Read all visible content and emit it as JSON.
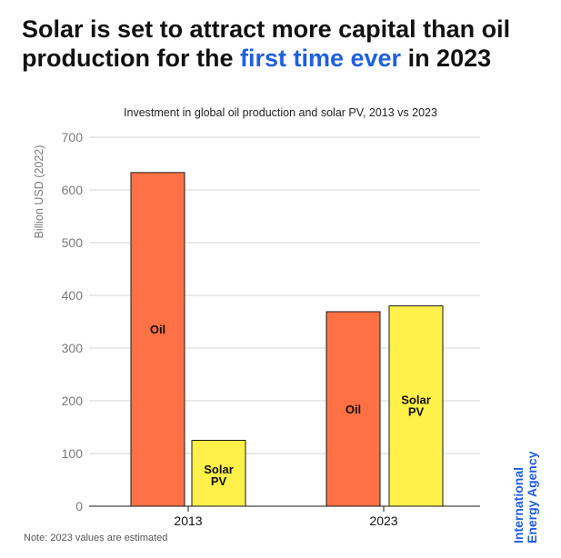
{
  "headline": {
    "part1": "Solar is set to attract more capital than oil production for the ",
    "highlight": "first time ever",
    "part2": " in 2023"
  },
  "note": "Note: 2023 values are estimated",
  "source": {
    "line1": "International",
    "line2": "Energy Agency"
  },
  "colors": {
    "oil": "#ff7144",
    "solar": "#fff04a",
    "highlight": "#1f5fe0"
  },
  "chart_data": {
    "type": "bar",
    "title": "Investment in global oil production and solar PV, 2013 vs 2023",
    "xlabel": "",
    "ylabel": "Billion USD (2022)",
    "ylim": [
      0,
      700
    ],
    "yticks": [
      0,
      100,
      200,
      300,
      400,
      500,
      600,
      700
    ],
    "grid": true,
    "categories": [
      "2013",
      "2023"
    ],
    "series": [
      {
        "name": "Oil",
        "values": [
          633,
          369
        ]
      },
      {
        "name": "Solar PV",
        "values": [
          125,
          380
        ]
      }
    ]
  }
}
